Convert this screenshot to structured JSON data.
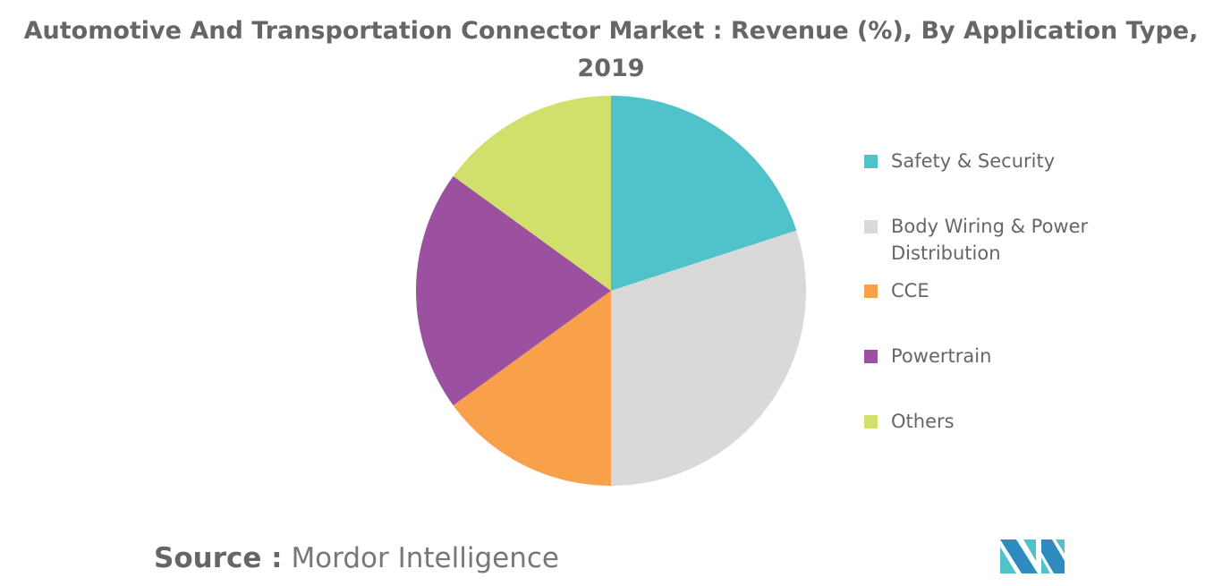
{
  "chart_data": {
    "type": "pie",
    "title_line1": "Automotive And Transportation Connector Market : Revenue (%), By Application Type,",
    "title_line2": "2019",
    "categories": [
      "Safety & Security",
      "Body Wiring & Power Distribution",
      "CCE",
      "Powertrain",
      "Others"
    ],
    "legend_lines": [
      [
        "Safety & Security"
      ],
      [
        "Body Wiring & Power",
        "Distribution"
      ],
      [
        "CCE"
      ],
      [
        "Powertrain"
      ],
      [
        "Others"
      ]
    ],
    "values": [
      20,
      30,
      15,
      20,
      15
    ],
    "unit": "%",
    "colors": [
      "#4fc3c9",
      "#d9d9d9",
      "#f9a04a",
      "#9b51a0",
      "#d1e06b"
    ],
    "legend_position": "right"
  },
  "source": {
    "label": "Source :",
    "text": "Mordor Intelligence"
  }
}
